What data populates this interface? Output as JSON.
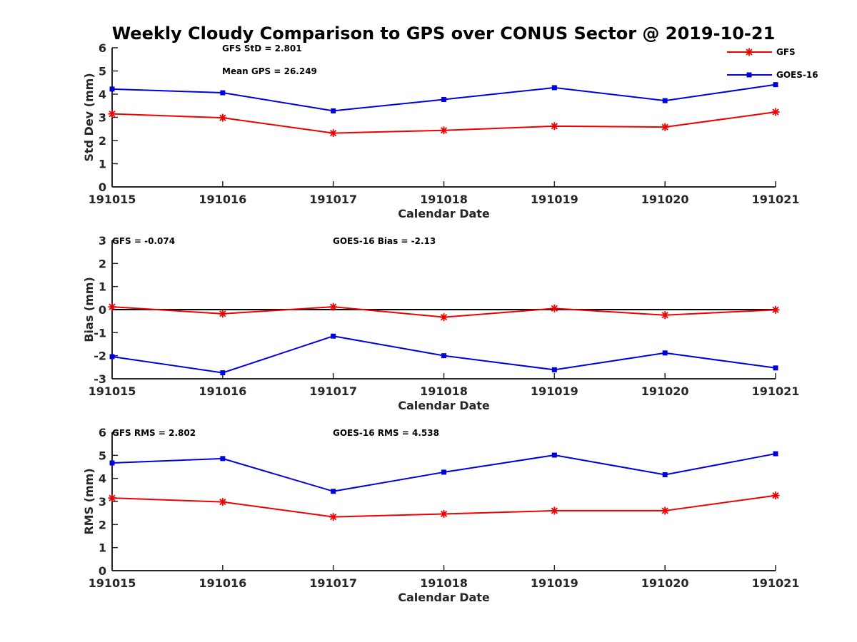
{
  "figure": {
    "title": "Weekly Cloudy Comparison to GPS over CONUS Sector @ 2019-10-21"
  },
  "colors": {
    "gfs": "#ee0000",
    "goes16": "#0000dd",
    "axis": "#262626",
    "zero_line": "#000000"
  },
  "legend": {
    "placement": "top-right",
    "items": [
      {
        "label": "GFS",
        "color": "#ee0000",
        "marker": "asterisk"
      },
      {
        "label": "GOES-16",
        "color": "#0000dd",
        "marker": "square"
      }
    ]
  },
  "chart_data": [
    {
      "type": "line",
      "xlabel": "Calendar Date",
      "ylabel": "Std Dev (mm)",
      "categories": [
        "191015",
        "191016",
        "191017",
        "191018",
        "191019",
        "191020",
        "191021"
      ],
      "ylim": [
        0,
        6
      ],
      "yticks": [
        0,
        1,
        2,
        3,
        4,
        5,
        6
      ],
      "zero_line": false,
      "annotations": [
        "GFS StD = 2.801",
        "Mean GPS = 26.249"
      ],
      "series": [
        {
          "name": "GFS",
          "color": "#ee0000",
          "marker": "asterisk",
          "values": [
            3.15,
            2.98,
            2.32,
            2.44,
            2.62,
            2.58,
            3.23
          ]
        },
        {
          "name": "GOES-16",
          "color": "#0000dd",
          "marker": "square",
          "values": [
            4.22,
            4.06,
            3.28,
            3.77,
            4.28,
            3.72,
            4.41
          ]
        }
      ]
    },
    {
      "type": "line",
      "xlabel": "Calendar Date",
      "ylabel": "Bias (mm)",
      "categories": [
        "191015",
        "191016",
        "191017",
        "191018",
        "191019",
        "191020",
        "191021"
      ],
      "ylim": [
        -3,
        3
      ],
      "yticks": [
        -3,
        -2,
        -1,
        0,
        1,
        2,
        3
      ],
      "zero_line": true,
      "annotations": [
        "GFS = -0.074",
        "GOES-16 Bias  = -2.13"
      ],
      "series": [
        {
          "name": "GFS",
          "color": "#ee0000",
          "marker": "asterisk",
          "values": [
            0.12,
            -0.18,
            0.12,
            -0.33,
            0.05,
            -0.24,
            -0.01
          ]
        },
        {
          "name": "GOES-16",
          "color": "#0000dd",
          "marker": "square",
          "values": [
            -2.04,
            -2.74,
            -1.15,
            -2.0,
            -2.61,
            -1.88,
            -2.53
          ]
        }
      ]
    },
    {
      "type": "line",
      "xlabel": "Calendar Date",
      "ylabel": "RMS (mm)",
      "categories": [
        "191015",
        "191016",
        "191017",
        "191018",
        "191019",
        "191020",
        "191021"
      ],
      "ylim": [
        0,
        6
      ],
      "yticks": [
        0,
        1,
        2,
        3,
        4,
        5,
        6
      ],
      "zero_line": false,
      "annotations": [
        "GFS RMS = 2.802",
        "GOES-16 RMS = 4.538"
      ],
      "series": [
        {
          "name": "GFS",
          "color": "#ee0000",
          "marker": "asterisk",
          "values": [
            3.15,
            2.98,
            2.33,
            2.46,
            2.6,
            2.6,
            3.26
          ]
        },
        {
          "name": "GOES-16",
          "color": "#0000dd",
          "marker": "square",
          "values": [
            4.67,
            4.86,
            3.44,
            4.27,
            5.01,
            4.16,
            5.07
          ]
        }
      ]
    }
  ]
}
